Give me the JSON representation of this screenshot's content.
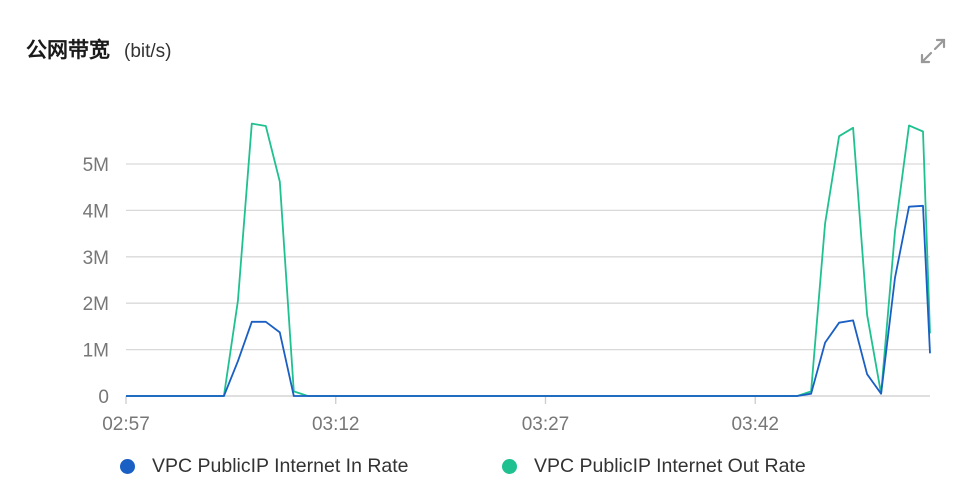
{
  "header": {
    "title": "公网带宽",
    "unit": "(bit/s)"
  },
  "icons": {
    "expand": "expand-arrows-icon"
  },
  "colors": {
    "in_rate": "#1a5fc4",
    "out_rate": "#1fc190",
    "grid": "#d9d9d9",
    "axis": "#cccccc"
  },
  "chart_data": {
    "type": "line",
    "title": "公网带宽",
    "ylabel": "bit/s",
    "xlabel": "",
    "ylim": [
      0,
      5
    ],
    "y_unit": "M",
    "grid": true,
    "legend_position": "bottom",
    "x_range": [
      0,
      57.5
    ],
    "x_tick_positions": [
      0,
      15,
      30,
      45
    ],
    "x_tick_labels": [
      "02:57",
      "03:12",
      "03:27",
      "03:42"
    ],
    "y_ticks": [
      0,
      1,
      2,
      3,
      4,
      5
    ],
    "y_tick_labels": [
      "0",
      "1M",
      "2M",
      "3M",
      "4M",
      "5M"
    ],
    "x": [
      0,
      1,
      2,
      3,
      4,
      5,
      6,
      7,
      8,
      9,
      10,
      11,
      12,
      13,
      14,
      15,
      16,
      17,
      18,
      19,
      20,
      21,
      22,
      23,
      24,
      25,
      26,
      27,
      28,
      29,
      30,
      31,
      32,
      33,
      34,
      35,
      36,
      37,
      38,
      39,
      40,
      41,
      42,
      43,
      44,
      45,
      46,
      47,
      48,
      49,
      50,
      51,
      52,
      53,
      54,
      55,
      56,
      57,
      57.5
    ],
    "series": [
      {
        "name": "VPC PublicIP Internet Out Rate",
        "values": [
          0,
          0,
          0,
          0,
          0,
          0,
          0,
          0,
          2.05,
          5.87,
          5.82,
          4.62,
          0.1,
          0,
          0,
          0,
          0,
          0,
          0,
          0,
          0,
          0,
          0,
          0,
          0,
          0,
          0,
          0,
          0,
          0,
          0,
          0,
          0,
          0,
          0,
          0,
          0,
          0,
          0,
          0,
          0,
          0,
          0,
          0,
          0,
          0,
          0,
          0,
          0,
          0.1,
          3.72,
          5.6,
          5.78,
          1.75,
          0.05,
          3.55,
          5.83,
          5.7,
          1.35
        ]
      },
      {
        "name": "VPC PublicIP Internet In Rate",
        "values": [
          0,
          0,
          0,
          0,
          0,
          0,
          0,
          0,
          0.75,
          1.6,
          1.6,
          1.37,
          0,
          0,
          0,
          0,
          0,
          0,
          0,
          0,
          0,
          0,
          0,
          0,
          0,
          0,
          0,
          0,
          0,
          0,
          0,
          0,
          0,
          0,
          0,
          0,
          0,
          0,
          0,
          0,
          0,
          0,
          0,
          0,
          0,
          0,
          0,
          0,
          0,
          0.05,
          1.15,
          1.58,
          1.63,
          0.47,
          0.05,
          2.55,
          4.08,
          4.1,
          0.92
        ]
      }
    ],
    "legend": [
      "VPC PublicIP Internet In Rate",
      "VPC PublicIP Internet Out Rate"
    ]
  }
}
